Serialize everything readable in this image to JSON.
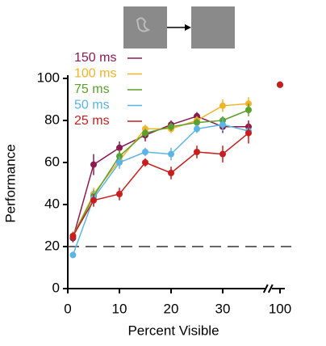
{
  "chart_data": {
    "type": "line",
    "x_label": "Percent Visible",
    "y_label": "Performance",
    "x": [
      1,
      5,
      10,
      15,
      20,
      25,
      30,
      35,
      100
    ],
    "series": [
      {
        "name": "150 ms",
        "color": "#8b1a50",
        "values": [
          24,
          59,
          67,
          73,
          78,
          82,
          77,
          77,
          97
        ],
        "errors": [
          2,
          5,
          3,
          3,
          2,
          2,
          3,
          3,
          1
        ]
      },
      {
        "name": "100 ms",
        "color": "#f0b428",
        "values": [
          25,
          45,
          61,
          76,
          76,
          80,
          87,
          88,
          97
        ],
        "errors": [
          2,
          3,
          3,
          2,
          2,
          2,
          3,
          3,
          1
        ]
      },
      {
        "name": "75 ms",
        "color": "#5aa02c",
        "values": [
          25,
          44,
          63,
          74,
          77,
          79,
          80,
          85,
          97
        ],
        "errors": [
          2,
          3,
          3,
          2,
          2,
          2,
          2,
          3,
          1
        ]
      },
      {
        "name": "50 ms",
        "color": "#5ab4e6",
        "values": [
          16,
          43,
          60,
          65,
          64,
          76,
          78,
          75,
          97
        ],
        "errors": [
          1,
          4,
          3,
          2,
          3,
          2,
          3,
          3,
          1
        ]
      },
      {
        "name": "25 ms",
        "color": "#c81e1e",
        "values": [
          25,
          42,
          45,
          60,
          55,
          65,
          64,
          74,
          97
        ],
        "errors": [
          2,
          3,
          3,
          2,
          3,
          3,
          4,
          5,
          1
        ]
      }
    ],
    "xlim": [
      0,
      100
    ],
    "x_break": [
      37,
      99
    ],
    "xticks": [
      0,
      10,
      20,
      30,
      100
    ],
    "ylim": [
      0,
      100
    ],
    "yticks": [
      0,
      20,
      40,
      60,
      80,
      100
    ],
    "reference_line": 20
  }
}
